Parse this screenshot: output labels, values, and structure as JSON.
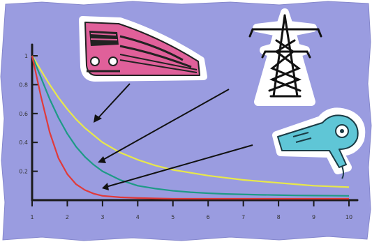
{
  "colors": {
    "background": "#9a9ce0",
    "axis": "#1a1a1a",
    "tick_label": "#333333",
    "yellow_curve": "#e8e84a",
    "green_curve": "#1e9a86",
    "red_curve": "#e03a3a",
    "train_body": "#e0609a",
    "dryer_body": "#5fc6d6"
  },
  "chart_data": {
    "type": "line",
    "title": "",
    "xlabel": "",
    "ylabel": "",
    "xlim": [
      1,
      10
    ],
    "ylim": [
      0,
      1
    ],
    "x_ticks": [
      1,
      2,
      3,
      4,
      5,
      6,
      7,
      8,
      9,
      10
    ],
    "y_ticks": [
      0.2,
      0.4,
      0.6,
      0.8,
      1
    ],
    "grid": false,
    "x": [
      1,
      1.25,
      1.5,
      1.75,
      2,
      2.25,
      2.5,
      2.75,
      3,
      3.5,
      4,
      4.5,
      5,
      5.5,
      6,
      6.5,
      7,
      7.5,
      8,
      8.5,
      9,
      9.5,
      10
    ],
    "series": [
      {
        "color_key": "yellow_curve",
        "icon": "train-icon",
        "values": [
          1.0,
          0.9,
          0.8,
          0.71,
          0.63,
          0.56,
          0.5,
          0.45,
          0.4,
          0.33,
          0.28,
          0.24,
          0.21,
          0.19,
          0.17,
          0.155,
          0.14,
          0.13,
          0.12,
          0.11,
          0.1,
          0.095,
          0.09
        ]
      },
      {
        "color_key": "green_curve",
        "icon": "pylon-icon",
        "values": [
          1.0,
          0.85,
          0.7,
          0.57,
          0.46,
          0.37,
          0.3,
          0.245,
          0.2,
          0.14,
          0.1,
          0.08,
          0.065,
          0.055,
          0.048,
          0.043,
          0.04,
          0.037,
          0.035,
          0.033,
          0.032,
          0.031,
          0.03
        ]
      },
      {
        "color_key": "red_curve",
        "icon": "hair-dryer-icon",
        "values": [
          1.0,
          0.72,
          0.47,
          0.29,
          0.18,
          0.11,
          0.07,
          0.045,
          0.03,
          0.02,
          0.015,
          0.012,
          0.01,
          0.01,
          0.01,
          0.01,
          0.01,
          0.01,
          0.01,
          0.01,
          0.01,
          0.01,
          0.01
        ]
      }
    ]
  }
}
